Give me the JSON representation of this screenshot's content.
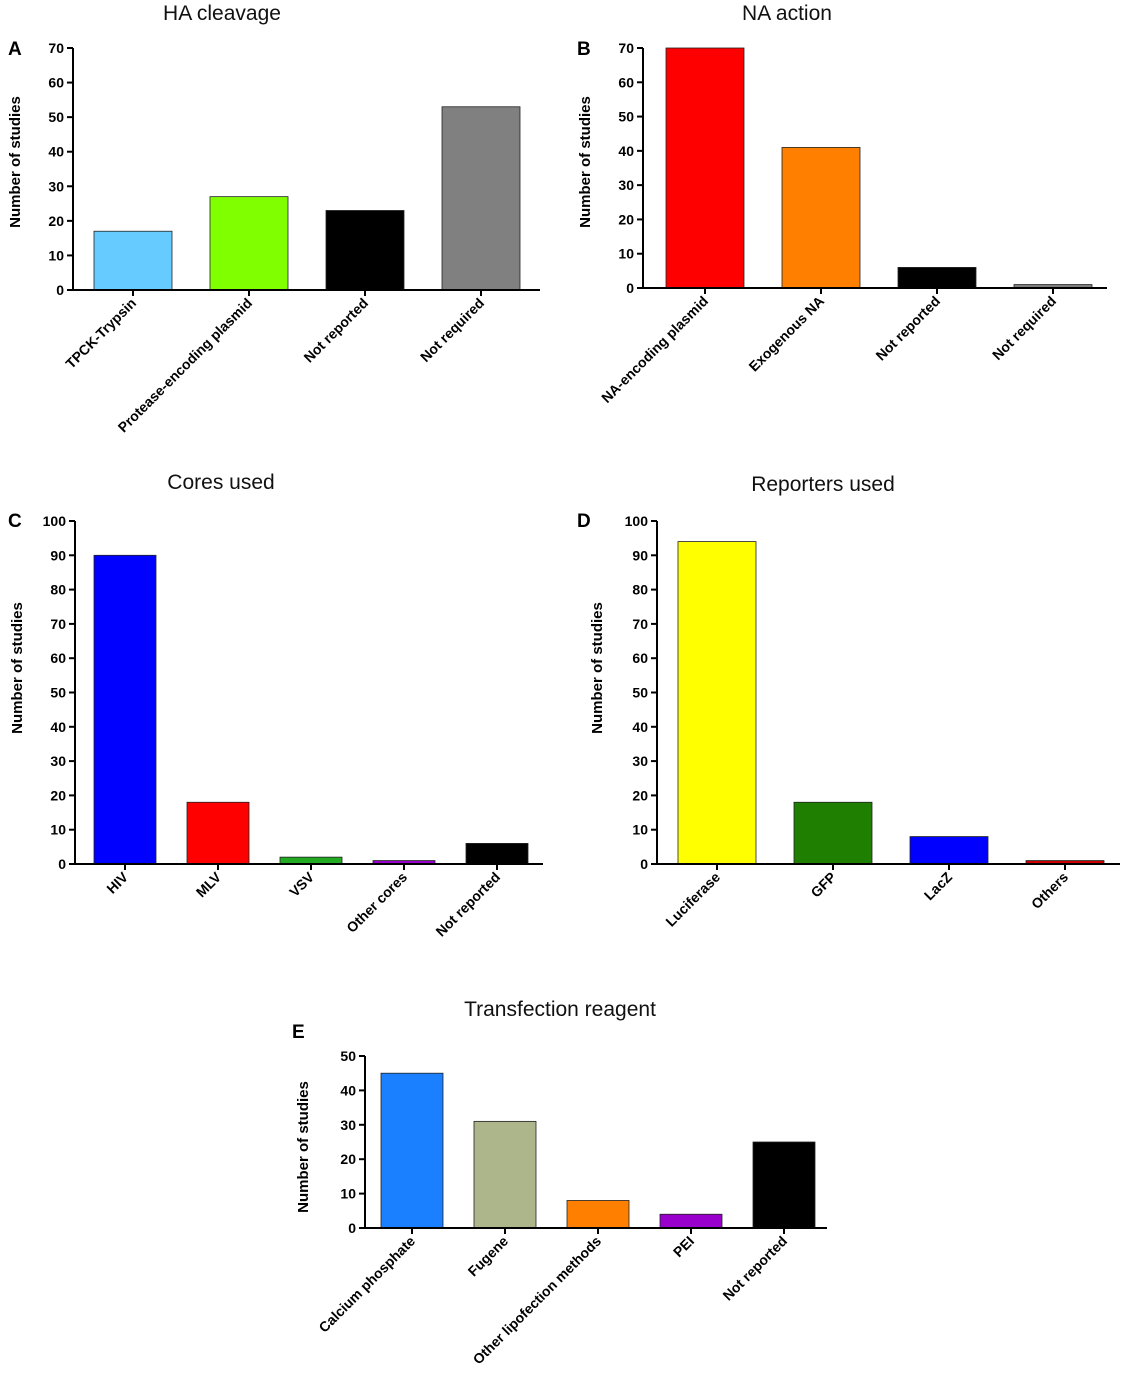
{
  "chart_data": [
    {
      "panel": "A",
      "type": "bar",
      "title": "HA cleavage",
      "ylabel": "Number of studies",
      "xlabel": "",
      "ylim": [
        0,
        70
      ],
      "yticks": [
        0,
        10,
        20,
        30,
        40,
        50,
        60,
        70
      ],
      "categories": [
        "TPCK-Trypsin",
        "Protease-encoding plasmid",
        "Not reported",
        "Not required"
      ],
      "values": [
        17,
        27,
        23,
        53
      ],
      "colors": [
        "#66ccff",
        "#80ff00",
        "#000000",
        "#808080"
      ]
    },
    {
      "panel": "B",
      "type": "bar",
      "title": "NA action",
      "ylabel": "Number of studies",
      "xlabel": "",
      "ylim": [
        0,
        70
      ],
      "yticks": [
        0,
        10,
        20,
        30,
        40,
        50,
        60,
        70
      ],
      "categories": [
        "NA-encoding plasmid",
        "Exogenous NA",
        "Not reported",
        "Not required"
      ],
      "values": [
        70,
        41,
        6,
        1
      ],
      "colors": [
        "#ff0000",
        "#ff8000",
        "#000000",
        "#808080"
      ]
    },
    {
      "panel": "C",
      "type": "bar",
      "title": "Cores used",
      "ylabel": "Number of studies",
      "xlabel": "",
      "ylim": [
        0,
        100
      ],
      "yticks": [
        0,
        10,
        20,
        30,
        40,
        50,
        60,
        70,
        80,
        90,
        100
      ],
      "categories": [
        "HIV",
        "MLV",
        "VSV",
        "Other cores",
        "Not reported"
      ],
      "values": [
        90,
        18,
        2,
        1,
        6
      ],
      "colors": [
        "#0000ff",
        "#ff0000",
        "#22aa22",
        "#9900cc",
        "#000000"
      ]
    },
    {
      "panel": "D",
      "type": "bar",
      "title": "Reporters used",
      "ylabel": "Number of studies",
      "xlabel": "",
      "ylim": [
        0,
        100
      ],
      "yticks": [
        0,
        10,
        20,
        30,
        40,
        50,
        60,
        70,
        80,
        90,
        100
      ],
      "categories": [
        "Luciferase",
        "GFP",
        "LacZ",
        "Others"
      ],
      "values": [
        94,
        18,
        8,
        1
      ],
      "colors": [
        "#ffff00",
        "#1f7f00",
        "#0000ff",
        "#cc0000"
      ]
    },
    {
      "panel": "E",
      "type": "bar",
      "title": "Transfection reagent",
      "ylabel": "Number of studies",
      "xlabel": "",
      "ylim": [
        0,
        50
      ],
      "yticks": [
        0,
        10,
        20,
        30,
        40,
        50
      ],
      "categories": [
        "Calcium phosphate",
        "Fugene",
        "Other lipofection methods",
        "PEI",
        "Not reported"
      ],
      "values": [
        45,
        31,
        8,
        4,
        25
      ],
      "colors": [
        "#1a80ff",
        "#adb58a",
        "#ff8000",
        "#9900cc",
        "#000000"
      ]
    }
  ]
}
